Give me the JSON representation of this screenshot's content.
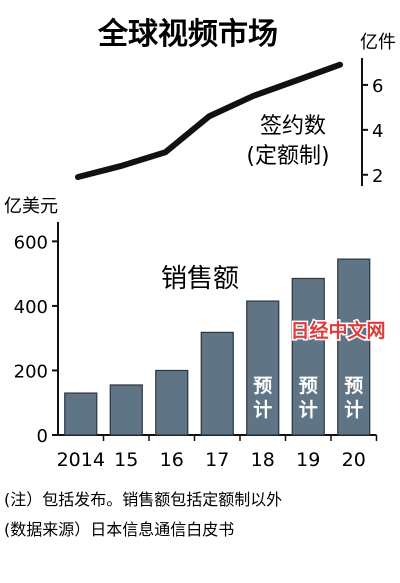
{
  "title": "全球视频市场",
  "colors": {
    "bar": "#5f7586",
    "line": "#111111",
    "watermark": "#e23b3b"
  },
  "watermark_text": "日经中文网",
  "chart_data": [
    {
      "type": "line",
      "title": "签约数",
      "subtitle": "(定额制)",
      "ylabel": "亿件",
      "x": [
        "2014",
        "15",
        "16",
        "17",
        "18",
        "19",
        "20"
      ],
      "values": [
        1.9,
        2.4,
        3.0,
        4.6,
        5.5,
        6.2,
        6.9
      ],
      "ylim": [
        1.5,
        7.2
      ],
      "yticks": [
        "2",
        "4",
        "6"
      ],
      "axis_side": "right"
    },
    {
      "type": "bar",
      "title": "销售额",
      "ylabel": "亿美元",
      "categories": [
        "2014",
        "15",
        "16",
        "17",
        "18",
        "19",
        "20"
      ],
      "values": [
        130,
        155,
        200,
        318,
        415,
        485,
        545
      ],
      "ylim": [
        0,
        660
      ],
      "yticks": [
        "0",
        "200",
        "400",
        "600"
      ],
      "forecast_label": "预计",
      "forecast_from_index": 4
    }
  ],
  "notes": {
    "note1": "(注）包括发布。销售额包括定额制以外",
    "note2": "(数据来源）日本信息通信白皮书"
  }
}
